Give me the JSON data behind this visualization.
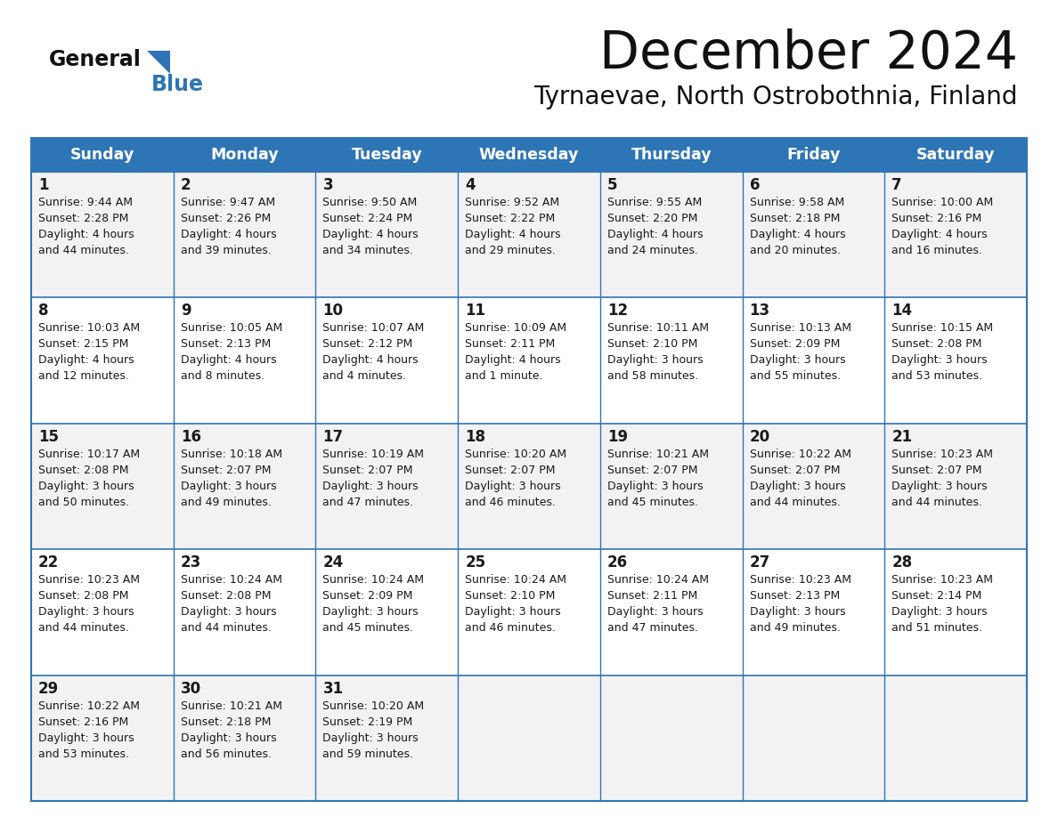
{
  "title": "December 2024",
  "subtitle": "Tyrnaevae, North Ostrobothnia, Finland",
  "header_bg": "#2E75B6",
  "header_text_color": "#FFFFFF",
  "cell_bg_odd": "#F2F2F2",
  "cell_bg_even": "#FFFFFF",
  "border_color": "#2E75B6",
  "text_color": "#1a1a1a",
  "day_headers": [
    "Sunday",
    "Monday",
    "Tuesday",
    "Wednesday",
    "Thursday",
    "Friday",
    "Saturday"
  ],
  "days": [
    {
      "day": 1,
      "col": 0,
      "row": 0,
      "sunrise": "9:44 AM",
      "sunset": "2:28 PM",
      "daylight": "4 hours",
      "daylight2": "and 44 minutes."
    },
    {
      "day": 2,
      "col": 1,
      "row": 0,
      "sunrise": "9:47 AM",
      "sunset": "2:26 PM",
      "daylight": "4 hours",
      "daylight2": "and 39 minutes."
    },
    {
      "day": 3,
      "col": 2,
      "row": 0,
      "sunrise": "9:50 AM",
      "sunset": "2:24 PM",
      "daylight": "4 hours",
      "daylight2": "and 34 minutes."
    },
    {
      "day": 4,
      "col": 3,
      "row": 0,
      "sunrise": "9:52 AM",
      "sunset": "2:22 PM",
      "daylight": "4 hours",
      "daylight2": "and 29 minutes."
    },
    {
      "day": 5,
      "col": 4,
      "row": 0,
      "sunrise": "9:55 AM",
      "sunset": "2:20 PM",
      "daylight": "4 hours",
      "daylight2": "and 24 minutes."
    },
    {
      "day": 6,
      "col": 5,
      "row": 0,
      "sunrise": "9:58 AM",
      "sunset": "2:18 PM",
      "daylight": "4 hours",
      "daylight2": "and 20 minutes."
    },
    {
      "day": 7,
      "col": 6,
      "row": 0,
      "sunrise": "10:00 AM",
      "sunset": "2:16 PM",
      "daylight": "4 hours",
      "daylight2": "and 16 minutes."
    },
    {
      "day": 8,
      "col": 0,
      "row": 1,
      "sunrise": "10:03 AM",
      "sunset": "2:15 PM",
      "daylight": "4 hours",
      "daylight2": "and 12 minutes."
    },
    {
      "day": 9,
      "col": 1,
      "row": 1,
      "sunrise": "10:05 AM",
      "sunset": "2:13 PM",
      "daylight": "4 hours",
      "daylight2": "and 8 minutes."
    },
    {
      "day": 10,
      "col": 2,
      "row": 1,
      "sunrise": "10:07 AM",
      "sunset": "2:12 PM",
      "daylight": "4 hours",
      "daylight2": "and 4 minutes."
    },
    {
      "day": 11,
      "col": 3,
      "row": 1,
      "sunrise": "10:09 AM",
      "sunset": "2:11 PM",
      "daylight": "4 hours",
      "daylight2": "and 1 minute."
    },
    {
      "day": 12,
      "col": 4,
      "row": 1,
      "sunrise": "10:11 AM",
      "sunset": "2:10 PM",
      "daylight": "3 hours",
      "daylight2": "and 58 minutes."
    },
    {
      "day": 13,
      "col": 5,
      "row": 1,
      "sunrise": "10:13 AM",
      "sunset": "2:09 PM",
      "daylight": "3 hours",
      "daylight2": "and 55 minutes."
    },
    {
      "day": 14,
      "col": 6,
      "row": 1,
      "sunrise": "10:15 AM",
      "sunset": "2:08 PM",
      "daylight": "3 hours",
      "daylight2": "and 53 minutes."
    },
    {
      "day": 15,
      "col": 0,
      "row": 2,
      "sunrise": "10:17 AM",
      "sunset": "2:08 PM",
      "daylight": "3 hours",
      "daylight2": "and 50 minutes."
    },
    {
      "day": 16,
      "col": 1,
      "row": 2,
      "sunrise": "10:18 AM",
      "sunset": "2:07 PM",
      "daylight": "3 hours",
      "daylight2": "and 49 minutes."
    },
    {
      "day": 17,
      "col": 2,
      "row": 2,
      "sunrise": "10:19 AM",
      "sunset": "2:07 PM",
      "daylight": "3 hours",
      "daylight2": "and 47 minutes."
    },
    {
      "day": 18,
      "col": 3,
      "row": 2,
      "sunrise": "10:20 AM",
      "sunset": "2:07 PM",
      "daylight": "3 hours",
      "daylight2": "and 46 minutes."
    },
    {
      "day": 19,
      "col": 4,
      "row": 2,
      "sunrise": "10:21 AM",
      "sunset": "2:07 PM",
      "daylight": "3 hours",
      "daylight2": "and 45 minutes."
    },
    {
      "day": 20,
      "col": 5,
      "row": 2,
      "sunrise": "10:22 AM",
      "sunset": "2:07 PM",
      "daylight": "3 hours",
      "daylight2": "and 44 minutes."
    },
    {
      "day": 21,
      "col": 6,
      "row": 2,
      "sunrise": "10:23 AM",
      "sunset": "2:07 PM",
      "daylight": "3 hours",
      "daylight2": "and 44 minutes."
    },
    {
      "day": 22,
      "col": 0,
      "row": 3,
      "sunrise": "10:23 AM",
      "sunset": "2:08 PM",
      "daylight": "3 hours",
      "daylight2": "and 44 minutes."
    },
    {
      "day": 23,
      "col": 1,
      "row": 3,
      "sunrise": "10:24 AM",
      "sunset": "2:08 PM",
      "daylight": "3 hours",
      "daylight2": "and 44 minutes."
    },
    {
      "day": 24,
      "col": 2,
      "row": 3,
      "sunrise": "10:24 AM",
      "sunset": "2:09 PM",
      "daylight": "3 hours",
      "daylight2": "and 45 minutes."
    },
    {
      "day": 25,
      "col": 3,
      "row": 3,
      "sunrise": "10:24 AM",
      "sunset": "2:10 PM",
      "daylight": "3 hours",
      "daylight2": "and 46 minutes."
    },
    {
      "day": 26,
      "col": 4,
      "row": 3,
      "sunrise": "10:24 AM",
      "sunset": "2:11 PM",
      "daylight": "3 hours",
      "daylight2": "and 47 minutes."
    },
    {
      "day": 27,
      "col": 5,
      "row": 3,
      "sunrise": "10:23 AM",
      "sunset": "2:13 PM",
      "daylight": "3 hours",
      "daylight2": "and 49 minutes."
    },
    {
      "day": 28,
      "col": 6,
      "row": 3,
      "sunrise": "10:23 AM",
      "sunset": "2:14 PM",
      "daylight": "3 hours",
      "daylight2": "and 51 minutes."
    },
    {
      "day": 29,
      "col": 0,
      "row": 4,
      "sunrise": "10:22 AM",
      "sunset": "2:16 PM",
      "daylight": "3 hours",
      "daylight2": "and 53 minutes."
    },
    {
      "day": 30,
      "col": 1,
      "row": 4,
      "sunrise": "10:21 AM",
      "sunset": "2:18 PM",
      "daylight": "3 hours",
      "daylight2": "and 56 minutes."
    },
    {
      "day": 31,
      "col": 2,
      "row": 4,
      "sunrise": "10:20 AM",
      "sunset": "2:19 PM",
      "daylight": "3 hours",
      "daylight2": "and 59 minutes."
    }
  ],
  "num_rows": 5,
  "figwidth": 11.88,
  "figheight": 9.18,
  "dpi": 100
}
